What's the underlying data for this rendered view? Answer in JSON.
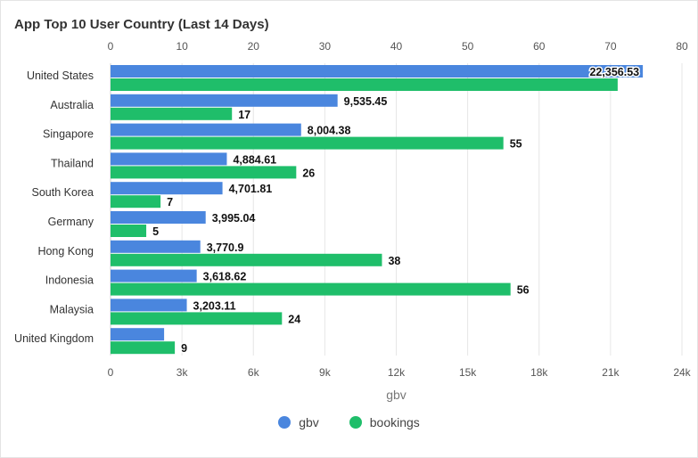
{
  "card": {
    "title": "App Top 10 User Country (Last 14 Days)"
  },
  "chart_data": {
    "type": "bar",
    "orientation": "horizontal",
    "title": "App Top 10 User Country (Last 14 Days)",
    "categories": [
      "United States",
      "Australia",
      "Singapore",
      "Thailand",
      "South Korea",
      "Germany",
      "Hong Kong",
      "Indonesia",
      "Malaysia",
      "United Kingdom"
    ],
    "series": [
      {
        "name": "gbv",
        "axis": "bottom",
        "color": "#4A86DE",
        "values": [
          22356.53,
          9535.45,
          8004.38,
          4884.61,
          4701.81,
          3995.04,
          3770.9,
          3618.62,
          3203.11,
          2250
        ],
        "labels": [
          "22,356.53",
          "9,535.45",
          "8,004.38",
          "4,884.61",
          "4,701.81",
          "3,995.04",
          "3,770.9",
          "3,618.62",
          "3,203.11",
          ""
        ]
      },
      {
        "name": "bookings",
        "axis": "top",
        "color": "#1FBE6A",
        "values": [
          71,
          17,
          55,
          26,
          7,
          5,
          38,
          56,
          24,
          9
        ],
        "labels": [
          "",
          "17",
          "55",
          "26",
          "7",
          "5",
          "38",
          "56",
          "24",
          "9"
        ]
      }
    ],
    "bottom_axis": {
      "title": "gbv",
      "range": [
        0,
        24000
      ],
      "ticks": [
        0,
        3000,
        6000,
        9000,
        12000,
        15000,
        18000,
        21000,
        24000
      ],
      "tick_labels": [
        "0",
        "3k",
        "6k",
        "9k",
        "12k",
        "15k",
        "18k",
        "21k",
        "24k"
      ]
    },
    "top_axis": {
      "title": "",
      "range": [
        0,
        80
      ],
      "ticks": [
        0,
        10,
        20,
        30,
        40,
        50,
        60,
        70,
        80
      ],
      "tick_labels": [
        "0",
        "10",
        "20",
        "30",
        "40",
        "50",
        "60",
        "70",
        "80"
      ]
    },
    "grid": true,
    "legend_position": "bottom-center"
  }
}
